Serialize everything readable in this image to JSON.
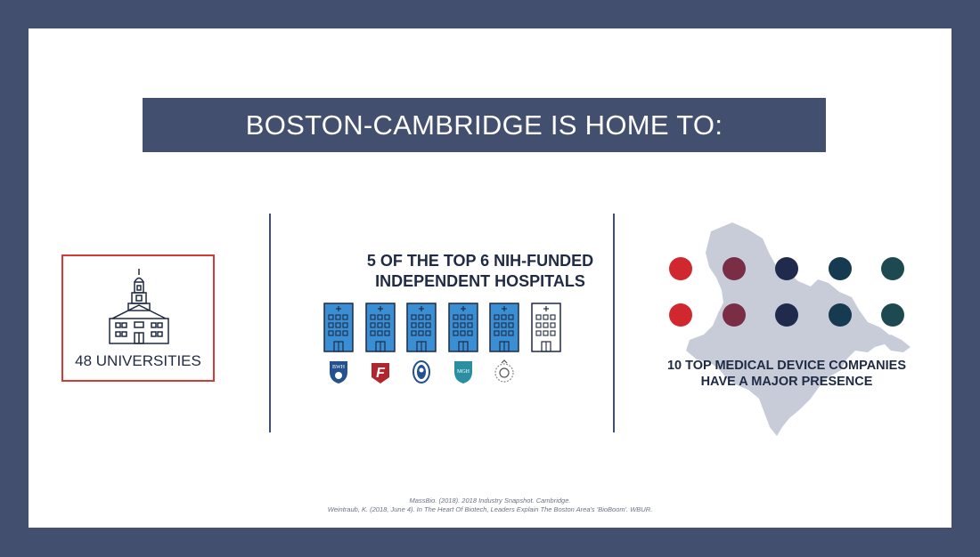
{
  "banner": {
    "title": "BOSTON-CAMBRIDGE IS HOME TO:"
  },
  "universities": {
    "label": "48 UNIVERSITIES",
    "icon": "university-building-icon",
    "border_color": "#d43b35"
  },
  "hospitals": {
    "title_line1": "5 OF THE TOP 6 NIH-FUNDED",
    "title_line2": "INDEPENDENT HOSPITALS",
    "highlighted_count": 5,
    "total_count": 6,
    "highlight_color": "#3a8fd4",
    "logos": [
      {
        "icon": "brigham-womens-hospital-logo",
        "text": "BWH"
      },
      {
        "icon": "hospital-f-logo",
        "text": "F"
      },
      {
        "icon": "hospital-crest-logo",
        "text": ""
      },
      {
        "icon": "mass-general-logo",
        "text": "MGH"
      },
      {
        "icon": "hospital-seal-logo",
        "text": ""
      }
    ]
  },
  "medical_devices": {
    "label_line1": "10 TOP MEDICAL DEVICE COMPANIES",
    "label_line2": "HAVE A MAJOR PRESENCE",
    "count": 10,
    "dot_colors": [
      "#d0282e",
      "#7a2e45",
      "#1f2a4c",
      "#163a50",
      "#1c4a50"
    ],
    "map_icon": "boston-area-map-icon",
    "map_color": "#c7ccd8"
  },
  "references": {
    "line1": "MassBio. (2018). 2018 Industry Snapshot. Cambridge.",
    "line2": "Weintraub, K. (2018, June 4). In The Heart Of Biotech, Leaders Explain The Boston Area's 'BioBoom'. WBUR."
  },
  "colors": {
    "navy": "#424f6e",
    "text": "#1f2a44",
    "red": "#d43b35"
  }
}
